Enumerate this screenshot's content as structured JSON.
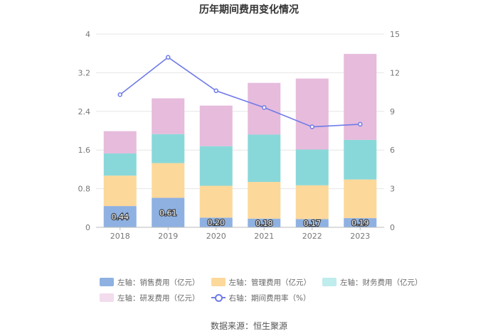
{
  "chart_data": {
    "type": "bar",
    "title": "历年期间费用变化情况",
    "categories": [
      "2018",
      "2019",
      "2020",
      "2021",
      "2022",
      "2023"
    ],
    "stacked": true,
    "left_axis": {
      "min": 0,
      "max": 4,
      "ticks": [
        "0",
        "0.8",
        "1.6",
        "2.4",
        "3.2",
        "4"
      ]
    },
    "right_axis": {
      "min": 0,
      "max": 15,
      "ticks": [
        "0",
        "3",
        "6",
        "9",
        "12",
        "15"
      ]
    },
    "series": [
      {
        "name": "左轴：销售费用（亿元）",
        "axis": "left",
        "color": "#8eb1e2",
        "values": [
          0.44,
          0.61,
          0.2,
          0.18,
          0.17,
          0.19
        ],
        "labels": [
          "0.44",
          "0.61",
          "0.20",
          "0.18",
          "0.17",
          "0.19"
        ]
      },
      {
        "name": "左轴：管理费用（亿元）",
        "axis": "left",
        "color": "#fcd89a",
        "values": [
          0.63,
          0.72,
          0.66,
          0.76,
          0.7,
          0.8
        ]
      },
      {
        "name": "左轴：财务费用（亿元）",
        "axis": "left",
        "color": "#89d8d9",
        "values": [
          0.46,
          0.6,
          0.82,
          0.98,
          0.74,
          0.82
        ]
      },
      {
        "name": "左轴：研发费用（亿元）",
        "axis": "left",
        "color": "#e6bbdc",
        "values": [
          0.46,
          0.74,
          0.84,
          1.07,
          1.47,
          1.78
        ]
      },
      {
        "name": "右轴：期间费用率（%）",
        "axis": "right",
        "type": "line",
        "color": "#6f7be8",
        "values": [
          10.3,
          13.2,
          10.6,
          9.3,
          7.8,
          8.0
        ]
      }
    ],
    "legend_position": "bottom"
  },
  "source": "数据来源：恒生聚源"
}
